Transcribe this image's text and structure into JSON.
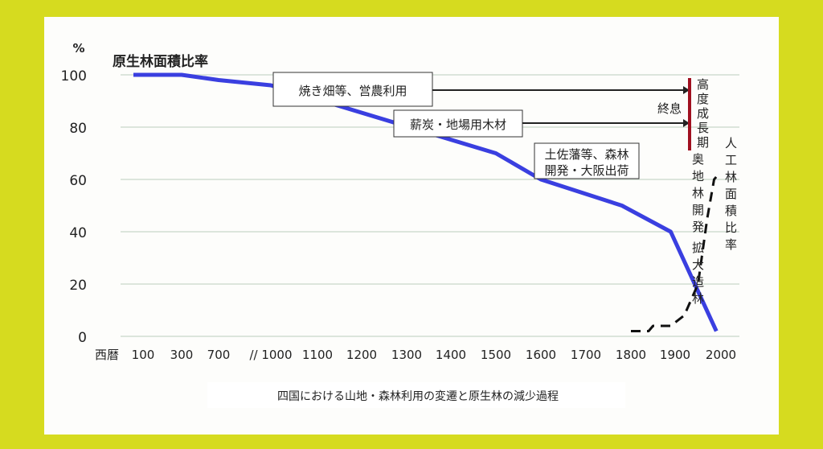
{
  "chart_data": {
    "type": "line",
    "title": "四国における山地・森林利用の変遷と原生林の減少過程",
    "ylabel": "%",
    "ylim": [
      0,
      100
    ],
    "yticks": [
      0,
      20,
      40,
      60,
      80,
      100
    ],
    "xlabel": "西暦",
    "xticks": [
      "100",
      "300",
      "700",
      "// 1000",
      "1100",
      "1200",
      "1300",
      "1400",
      "1500",
      "1600",
      "1700",
      "1800",
      "1900",
      "2000"
    ],
    "xtick_years": [
      100,
      300,
      700,
      1000,
      1100,
      1200,
      1300,
      1400,
      1500,
      1600,
      1700,
      1800,
      1900,
      2000
    ],
    "grid": true,
    "series": [
      {
        "name": "原生林面積比率",
        "color": "#3a3fe0",
        "style": "solid",
        "points": [
          [
            50,
            100
          ],
          [
            300,
            100
          ],
          [
            700,
            98
          ],
          [
            1000,
            96
          ],
          [
            1500,
            70
          ],
          [
            1600,
            60
          ],
          [
            1780,
            50
          ],
          [
            1890,
            40
          ],
          [
            1990,
            2
          ]
        ]
      },
      {
        "name": "人工林面積比率",
        "color": "#111111",
        "style": "dashed",
        "points": [
          [
            1800,
            2
          ],
          [
            1840,
            2
          ],
          [
            1850,
            4
          ],
          [
            1890,
            4
          ],
          [
            1920,
            8
          ],
          [
            1950,
            20
          ],
          [
            1970,
            45
          ],
          [
            1985,
            60
          ],
          [
            1995,
            62
          ]
        ]
      }
    ],
    "annotations": {
      "box1": "焼き畑等、営農利用",
      "box2": "薪炭・地場用木材",
      "box3_line1": "土佐藩等、森林",
      "box3_line2": "開発・大阪出荷",
      "end": "終息",
      "period1": "高度成長期",
      "period2": "奥地林開発",
      "period3": "拡大造林"
    },
    "accent_red": "#a01020"
  }
}
